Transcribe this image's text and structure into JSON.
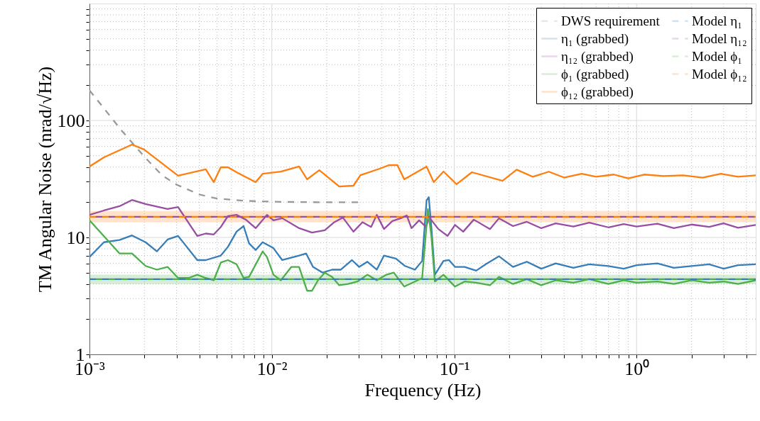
{
  "chart_data": {
    "type": "line",
    "xlabel": "Frequency (Hz)",
    "ylabel": "TM Angular Noise (nrad/√Hz)",
    "log": "xy",
    "grid": true,
    "legend": "top right",
    "xlim": [
      0.001,
      4.5
    ],
    "ylim": [
      1,
      1000
    ],
    "xticks": [
      {
        "value": 0.001,
        "label": "10⁻³"
      },
      {
        "value": 0.002,
        "label": null
      },
      {
        "value": 0.003,
        "label": null
      },
      {
        "value": 0.004,
        "label": null
      },
      {
        "value": 0.005,
        "label": null
      },
      {
        "value": 0.006,
        "label": null
      },
      {
        "value": 0.007,
        "label": null
      },
      {
        "value": 0.008,
        "label": null
      },
      {
        "value": 0.009,
        "label": null
      },
      {
        "value": 0.01,
        "label": "10⁻²"
      },
      {
        "value": 0.02,
        "label": null
      },
      {
        "value": 0.03,
        "label": null
      },
      {
        "value": 0.04,
        "label": null
      },
      {
        "value": 0.05,
        "label": null
      },
      {
        "value": 0.06,
        "label": null
      },
      {
        "value": 0.07,
        "label": null
      },
      {
        "value": 0.08,
        "label": null
      },
      {
        "value": 0.09,
        "label": null
      },
      {
        "value": 0.1,
        "label": "10⁻¹"
      },
      {
        "value": 0.2,
        "label": null
      },
      {
        "value": 0.3,
        "label": null
      },
      {
        "value": 0.4,
        "label": null
      },
      {
        "value": 0.5,
        "label": null
      },
      {
        "value": 0.6,
        "label": null
      },
      {
        "value": 0.7,
        "label": null
      },
      {
        "value": 0.8,
        "label": null
      },
      {
        "value": 0.9,
        "label": null
      },
      {
        "value": 1,
        "label": "10⁰"
      },
      {
        "value": 2,
        "label": null
      },
      {
        "value": 3,
        "label": null
      },
      {
        "value": 4,
        "label": null
      }
    ],
    "yticks": [
      1,
      {
        "value": 2,
        "label": null
      },
      {
        "value": 3,
        "label": null
      },
      {
        "value": 4,
        "label": null
      },
      {
        "value": 5,
        "label": null
      },
      {
        "value": 6,
        "label": null
      },
      {
        "value": 7,
        "label": null
      },
      {
        "value": 8,
        "label": null
      },
      {
        "value": 9,
        "label": null
      },
      10,
      {
        "value": 20,
        "label": null
      },
      {
        "value": 30,
        "label": null
      },
      {
        "value": 40,
        "label": null
      },
      {
        "value": 50,
        "label": null
      },
      {
        "value": 60,
        "label": null
      },
      {
        "value": 70,
        "label": null
      },
      {
        "value": 80,
        "label": null
      },
      {
        "value": 90,
        "label": null
      },
      100,
      {
        "value": 200,
        "label": null
      },
      {
        "value": 300,
        "label": null
      },
      {
        "value": 400,
        "label": null
      },
      {
        "value": 500,
        "label": null
      },
      {
        "value": 600,
        "label": null
      },
      {
        "value": 700,
        "label": null
      },
      {
        "value": 800,
        "label": null
      },
      {
        "value": 900,
        "label": null
      }
    ],
    "series": [
      {
        "name": "DWS requirement",
        "color": "#999999",
        "line_style": "dashed",
        "x": [
          0.001,
          0.0012,
          0.0015,
          0.002,
          0.0025,
          0.003,
          0.004,
          0.005,
          0.007,
          0.01,
          0.015,
          0.02,
          0.03
        ],
        "values": [
          181,
          127,
          82,
          49,
          34,
          28.3,
          23.3,
          21.5,
          20.6,
          20.2,
          20.04,
          20.0,
          20.0
        ]
      },
      {
        "name": "η₁ (grabbed)",
        "color": "#377eb8",
        "line_style": "solid",
        "x": [
          0.001,
          0.0012,
          0.00146,
          0.00171,
          0.00203,
          0.00234,
          0.00268,
          0.00306,
          0.0039,
          0.00434,
          0.00525,
          0.00574,
          0.0064,
          0.007,
          0.0075,
          0.00815,
          0.0089,
          0.0102,
          0.0114,
          0.0141,
          0.0154,
          0.0168,
          0.019,
          0.0214,
          0.0239,
          0.0275,
          0.0301,
          0.0334,
          0.0376,
          0.0412,
          0.0479,
          0.0537,
          0.0609,
          0.0667,
          0.0705,
          0.0725,
          0.0749,
          0.0783,
          0.0873,
          0.0936,
          0.101,
          0.114,
          0.132,
          0.149,
          0.176,
          0.21,
          0.25,
          0.3,
          0.36,
          0.45,
          0.55,
          0.7,
          0.85,
          1.0,
          1.3,
          1.6,
          2.0,
          2.5,
          3.0,
          3.6,
          4.5
        ],
        "values": [
          6.8,
          9.1,
          9.5,
          10.4,
          9.1,
          7.6,
          9.6,
          10.3,
          6.4,
          6.4,
          7.0,
          8.3,
          11.2,
          12.5,
          8.9,
          7.8,
          9.1,
          8.1,
          6.4,
          7.0,
          7.3,
          5.6,
          5.0,
          5.3,
          5.3,
          6.4,
          5.6,
          6.2,
          5.3,
          7.0,
          6.6,
          5.7,
          5.3,
          6.3,
          20.7,
          22.1,
          12.3,
          4.8,
          6.3,
          6.4,
          5.6,
          5.6,
          5.2,
          5.9,
          6.9,
          5.6,
          6.2,
          5.4,
          6.0,
          5.5,
          5.9,
          5.7,
          5.4,
          5.8,
          6.0,
          5.5,
          5.7,
          5.9,
          5.4,
          5.8,
          5.9
        ]
      },
      {
        "name": "η₁₂ (grabbed)",
        "color": "#984ea3",
        "line_style": "solid",
        "x": [
          0.001,
          0.0012,
          0.00146,
          0.00171,
          0.00203,
          0.00268,
          0.00306,
          0.0039,
          0.00434,
          0.0048,
          0.00525,
          0.00574,
          0.0064,
          0.0072,
          0.00815,
          0.0094,
          0.0102,
          0.0114,
          0.0141,
          0.0166,
          0.0195,
          0.022,
          0.0245,
          0.028,
          0.0314,
          0.035,
          0.0376,
          0.0412,
          0.0458,
          0.0509,
          0.0549,
          0.0583,
          0.0642,
          0.07,
          0.073,
          0.0818,
          0.0919,
          0.101,
          0.112,
          0.128,
          0.157,
          0.176,
          0.21,
          0.25,
          0.3,
          0.36,
          0.45,
          0.55,
          0.7,
          0.85,
          1.0,
          1.3,
          1.6,
          2.0,
          2.5,
          3.0,
          3.6,
          4.5
        ],
        "values": [
          15.6,
          17.0,
          18.5,
          20.9,
          19.3,
          17.5,
          18.2,
          10.3,
          10.8,
          10.6,
          12.3,
          15.2,
          15.6,
          14.2,
          12.0,
          15.6,
          14.0,
          14.6,
          12.0,
          11.0,
          11.5,
          13.5,
          14.8,
          11.2,
          13.5,
          12.3,
          15.6,
          11.8,
          13.8,
          14.6,
          15.4,
          12.0,
          14.0,
          12.3,
          14.8,
          11.8,
          10.3,
          12.8,
          11.2,
          14.2,
          11.8,
          14.6,
          12.5,
          13.6,
          12.0,
          13.2,
          12.4,
          13.4,
          12.2,
          13.0,
          12.4,
          13.1,
          12.0,
          12.9,
          12.3,
          13.2,
          12.1,
          12.8
        ]
      },
      {
        "name": "ϕ₁ (grabbed)",
        "color": "#4daf4a",
        "line_style": "solid",
        "x": [
          0.001,
          0.00146,
          0.00171,
          0.00203,
          0.00234,
          0.00268,
          0.00306,
          0.0035,
          0.0039,
          0.00434,
          0.0048,
          0.00525,
          0.00574,
          0.0064,
          0.007,
          0.0075,
          0.0089,
          0.0094,
          0.0102,
          0.0112,
          0.0128,
          0.0141,
          0.0156,
          0.0166,
          0.0179,
          0.0195,
          0.0214,
          0.0234,
          0.0262,
          0.0295,
          0.0334,
          0.0376,
          0.0425,
          0.0466,
          0.0532,
          0.0609,
          0.0667,
          0.0717,
          0.0749,
          0.0783,
          0.0873,
          0.101,
          0.114,
          0.132,
          0.157,
          0.176,
          0.21,
          0.25,
          0.3,
          0.36,
          0.45,
          0.55,
          0.7,
          0.85,
          1.0,
          1.3,
          1.6,
          2.0,
          2.5,
          3.0,
          3.6,
          4.5
        ],
        "values": [
          14.0,
          7.3,
          7.3,
          5.7,
          5.3,
          5.6,
          4.5,
          4.5,
          4.8,
          4.5,
          4.3,
          6.1,
          6.4,
          5.9,
          4.5,
          4.6,
          7.6,
          6.8,
          4.8,
          4.3,
          5.6,
          5.6,
          3.5,
          3.5,
          4.3,
          5.0,
          4.6,
          3.9,
          4.0,
          4.2,
          4.8,
          4.3,
          4.8,
          5.0,
          3.8,
          4.2,
          4.5,
          17.5,
          10.3,
          4.2,
          4.8,
          3.8,
          4.2,
          4.1,
          3.9,
          4.6,
          4.0,
          4.4,
          3.9,
          4.3,
          4.1,
          4.4,
          4.0,
          4.3,
          4.1,
          4.2,
          4.0,
          4.3,
          4.1,
          4.2,
          4.0,
          4.3
        ]
      },
      {
        "name": "ϕ₁₂ (grabbed)",
        "color": "#ff7f0e",
        "line_style": "solid",
        "x": [
          0.001,
          0.0012,
          0.00171,
          0.00199,
          0.00306,
          0.00434,
          0.0048,
          0.00525,
          0.00574,
          0.00651,
          0.00815,
          0.00892,
          0.0112,
          0.0141,
          0.0156,
          0.0182,
          0.0234,
          0.028,
          0.0306,
          0.039,
          0.0438,
          0.0488,
          0.0532,
          0.0705,
          0.0772,
          0.0873,
          0.103,
          0.125,
          0.184,
          0.22,
          0.27,
          0.33,
          0.4,
          0.5,
          0.6,
          0.75,
          0.9,
          1.1,
          1.4,
          1.8,
          2.3,
          2.9,
          3.6,
          4.5
        ],
        "values": [
          40.4,
          48.4,
          62.2,
          56.5,
          33.7,
          38.2,
          29.7,
          39.8,
          39.8,
          35.6,
          29.7,
          35.1,
          36.6,
          40.4,
          31.4,
          37.6,
          27.3,
          27.7,
          34.1,
          38.7,
          41.5,
          41.5,
          31.4,
          40.4,
          29.7,
          36.6,
          28.5,
          36.1,
          30.5,
          38.0,
          33.0,
          36.5,
          32.5,
          35.0,
          33.0,
          34.5,
          32.0,
          34.5,
          33.5,
          34.0,
          32.5,
          35.0,
          33.0,
          34.0
        ]
      },
      {
        "name": "Model η₁",
        "color": "#377eb8",
        "line_style": "dashed",
        "x": [
          0.001,
          4.5
        ],
        "values": [
          4.4,
          4.4
        ]
      },
      {
        "name": "Model η₁₂",
        "color": "#984ea3",
        "line_style": "dashed",
        "x": [
          0.001,
          4.5
        ],
        "values": [
          15,
          15
        ]
      },
      {
        "name": "Model ϕ₁",
        "color": "#4daf4a",
        "line_style": "dashed",
        "x": [
          0.001,
          4.5
        ],
        "values": [
          4.4,
          4.4
        ],
        "lower": [
          4.0,
          4.0
        ],
        "upper": [
          4.8,
          4.8
        ]
      },
      {
        "name": "Model ϕ₁₂",
        "color": "#ff7f0e",
        "line_style": "dashed",
        "x": [
          0.001,
          4.5
        ],
        "values": [
          15,
          15
        ],
        "lower": [
          13.5,
          13.5
        ],
        "upper": [
          16.8,
          16.8
        ]
      }
    ]
  }
}
